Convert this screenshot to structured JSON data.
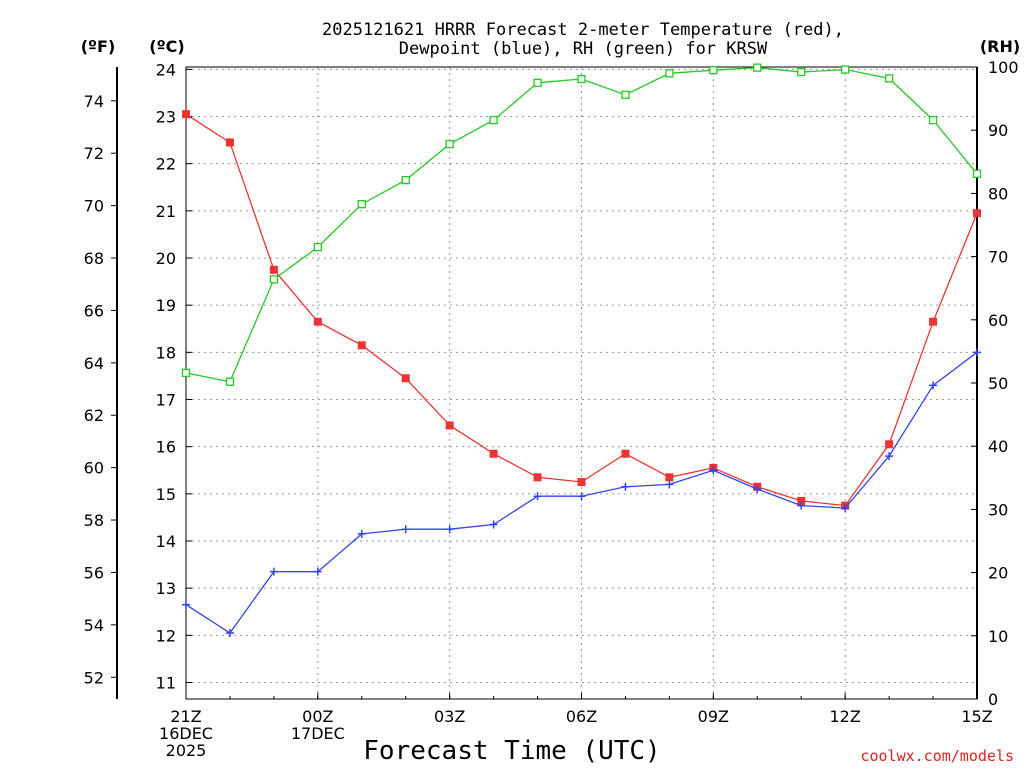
{
  "chart_data": {
    "type": "line",
    "title_lines": [
      "2025121621 HRRR Forecast 2-meter Temperature (red),",
      "Dewpoint (blue), RH (green) for KRSW"
    ],
    "xlabel": "Forecast Time (UTC)",
    "credit": "coolwx.com/models",
    "unit_labels": {
      "fahrenheit": "(ºF)",
      "celsius": "(ºC)",
      "rh": "(RH)"
    },
    "x_range": [
      0,
      18
    ],
    "x_ticks": [
      {
        "x": 0,
        "lines": [
          "21Z",
          "16DEC",
          "2025"
        ]
      },
      {
        "x": 3,
        "lines": [
          "00Z",
          "17DEC"
        ]
      },
      {
        "x": 6,
        "lines": [
          "03Z"
        ]
      },
      {
        "x": 9,
        "lines": [
          "06Z"
        ]
      },
      {
        "x": 12,
        "lines": [
          "09Z"
        ]
      },
      {
        "x": 15,
        "lines": [
          "12Z"
        ]
      },
      {
        "x": 18,
        "lines": [
          "15Z"
        ]
      }
    ],
    "celsius_range": [
      10.65,
      24.05
    ],
    "celsius_ticks": [
      "11",
      "12",
      "13",
      "14",
      "15",
      "16",
      "17",
      "18",
      "19",
      "20",
      "21",
      "22",
      "23",
      "24"
    ],
    "fahrenheit_ticks": [
      "52",
      "54",
      "56",
      "58",
      "60",
      "62",
      "64",
      "66",
      "68",
      "70",
      "72",
      "74"
    ],
    "rh_range": [
      0,
      100
    ],
    "rh_ticks": [
      "0",
      "10",
      "20",
      "30",
      "40",
      "50",
      "60",
      "70",
      "80",
      "90",
      "100"
    ],
    "series": [
      {
        "name": "Temperature",
        "axis": "celsius",
        "color": "#ee3333",
        "marker": "filled-square",
        "values": [
          23.05,
          22.45,
          19.75,
          18.65,
          18.15,
          17.45,
          16.45,
          15.85,
          15.35,
          15.25,
          15.85,
          15.35,
          15.55,
          15.15,
          14.85,
          14.75,
          16.05,
          18.65,
          20.95
        ]
      },
      {
        "name": "Dewpoint",
        "axis": "celsius",
        "color": "#3344ee",
        "marker": "plus",
        "values": [
          12.65,
          12.05,
          13.35,
          13.35,
          14.15,
          14.25,
          14.25,
          14.35,
          14.95,
          14.95,
          15.15,
          15.2,
          15.5,
          15.1,
          14.75,
          14.7,
          15.8,
          17.3,
          18.0
        ]
      },
      {
        "name": "RH",
        "axis": "rh",
        "color": "#22cc22",
        "marker": "open-square",
        "values": [
          51.6,
          50.2,
          66.4,
          71.5,
          78.3,
          82.1,
          87.8,
          91.6,
          97.5,
          98.1,
          95.6,
          99.0,
          99.5,
          99.9,
          99.2,
          99.6,
          98.2,
          91.6,
          83.1
        ]
      }
    ]
  }
}
